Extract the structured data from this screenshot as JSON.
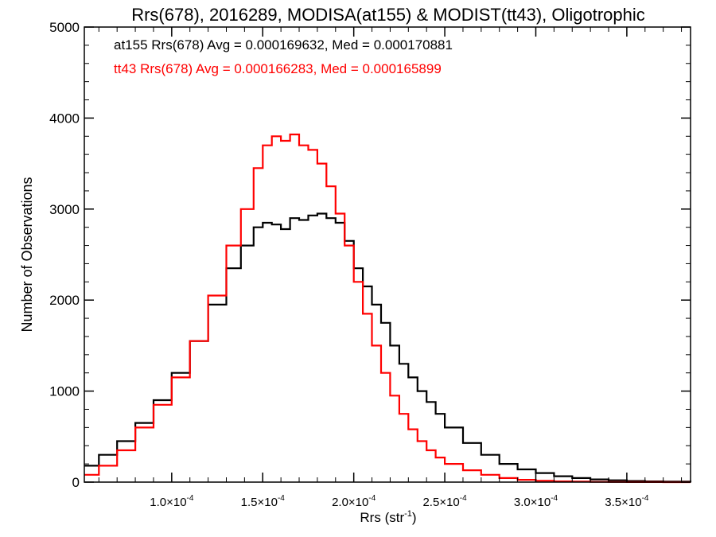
{
  "chart_data": {
    "type": "line",
    "title": "Rrs(678), 2016289, MODISA(at155) & MODIST(tt43), Oligotrophic",
    "xlabel": "Rrs (str",
    "xlabel_sup": "-1",
    "xlabel_close": ")",
    "ylabel": "Number of Observations",
    "xlim": [
      5.2e-05,
      0.000385
    ],
    "ylim": [
      0,
      5000
    ],
    "grid": false,
    "legend_position": "top-left",
    "x_ticks": [
      {
        "value": 0.0001,
        "mant": "1.0",
        "sup": "-4"
      },
      {
        "value": 0.00015,
        "mant": "1.5",
        "sup": "-4"
      },
      {
        "value": 0.0002,
        "mant": "2.0",
        "sup": "-4"
      },
      {
        "value": 0.00025,
        "mant": "2.5",
        "sup": "-4"
      },
      {
        "value": 0.0003,
        "mant": "3.0",
        "sup": "-4"
      },
      {
        "value": 0.00035,
        "mant": "3.5",
        "sup": "-4"
      }
    ],
    "y_ticks": [
      0,
      1000,
      2000,
      3000,
      4000,
      5000
    ],
    "legend": [
      {
        "text": "at155 Rrs(678) Avg = 0.000169632, Med = 0.000170881",
        "color": "#000000"
      },
      {
        "text": "tt43 Rrs(678) Avg = 0.000166283, Med = 0.000165899",
        "color": "#ff0000"
      }
    ],
    "series": [
      {
        "color": "#000000",
        "x": [
          5.2e-05,
          6e-05,
          7e-05,
          8e-05,
          9e-05,
          0.0001,
          0.00011,
          0.00012,
          0.00013,
          0.000138,
          0.000145,
          0.00015,
          0.000155,
          0.00016,
          0.000165,
          0.00017,
          0.000175,
          0.00018,
          0.000185,
          0.00019,
          0.000195,
          0.0002,
          0.000205,
          0.00021,
          0.000215,
          0.00022,
          0.000225,
          0.00023,
          0.000235,
          0.00024,
          0.000245,
          0.00025,
          0.00026,
          0.00027,
          0.00028,
          0.00029,
          0.0003,
          0.00031,
          0.00032,
          0.00033,
          0.00034,
          0.00035,
          0.00036,
          0.00037,
          0.000385
        ],
        "values": [
          180,
          300,
          450,
          650,
          900,
          1200,
          1550,
          1950,
          2350,
          2600,
          2800,
          2850,
          2830,
          2780,
          2900,
          2880,
          2930,
          2950,
          2900,
          2850,
          2650,
          2350,
          2150,
          1950,
          1750,
          1500,
          1300,
          1150,
          1000,
          880,
          750,
          600,
          430,
          300,
          200,
          140,
          100,
          65,
          45,
          30,
          20,
          12,
          8,
          5,
          3
        ]
      },
      {
        "color": "#ff0000",
        "x": [
          5.2e-05,
          6e-05,
          7e-05,
          8e-05,
          9e-05,
          0.0001,
          0.00011,
          0.00012,
          0.00013,
          0.000138,
          0.000145,
          0.00015,
          0.000155,
          0.00016,
          0.000165,
          0.00017,
          0.000175,
          0.00018,
          0.000185,
          0.00019,
          0.000195,
          0.0002,
          0.000205,
          0.00021,
          0.000215,
          0.00022,
          0.000225,
          0.00023,
          0.000235,
          0.00024,
          0.000245,
          0.00025,
          0.00026,
          0.00027,
          0.00028,
          0.00029,
          0.0003,
          0.00031,
          0.00032,
          0.00033,
          0.00034,
          0.00035,
          0.00036,
          0.00037,
          0.000385
        ],
        "values": [
          80,
          180,
          350,
          600,
          850,
          1150,
          1550,
          2050,
          2600,
          3000,
          3450,
          3700,
          3800,
          3750,
          3820,
          3700,
          3650,
          3500,
          3250,
          2950,
          2600,
          2200,
          1850,
          1500,
          1200,
          950,
          750,
          580,
          450,
          350,
          270,
          200,
          130,
          80,
          45,
          25,
          15,
          8,
          5,
          3,
          2,
          1,
          1,
          0,
          0
        ]
      }
    ]
  }
}
